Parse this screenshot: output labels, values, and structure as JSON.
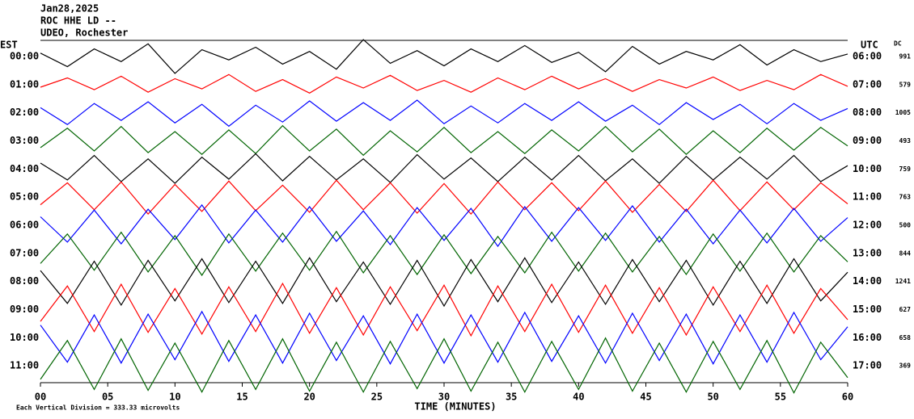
{
  "chart_data": {
    "type": "line",
    "header": [
      "Jan28,2025",
      "ROC HHE LD --",
      "UDEO, Rochester"
    ],
    "left_axis_label": "EST",
    "right_axis_label": "UTC",
    "dc_label": "DC",
    "xlabel": "TIME (MINUTES)",
    "footnote": "Each Vertical Division =  333.33 microvolts",
    "division": 333.33,
    "xlim": [
      0,
      60
    ],
    "xticks": [
      {
        "value": 0,
        "label": "00"
      },
      {
        "value": 5,
        "label": "05"
      },
      10,
      15,
      20,
      25,
      30,
      35,
      40,
      45,
      50,
      55,
      60
    ],
    "rows_est": [
      "00:00",
      "01:00",
      "02:00",
      "03:00",
      "04:00",
      "05:00",
      "06:00",
      "07:00",
      "08:00",
      "09:00",
      "10:00",
      "11:00"
    ],
    "rows_utc": [
      "06:00",
      "07:00",
      "08:00",
      "09:00",
      "10:00",
      "11:00",
      "12:00",
      "13:00",
      "14:00",
      "15:00",
      "16:00",
      "17:00"
    ],
    "dc": [
      "991",
      "579",
      "1005",
      "493",
      "759",
      "763",
      "500",
      "844",
      "1241",
      "627",
      "658",
      "369"
    ],
    "x": [
      0,
      2,
      4,
      6,
      8,
      10,
      12,
      14,
      16,
      18,
      20,
      22,
      24,
      26,
      28,
      30,
      32,
      34,
      36,
      38,
      40,
      42,
      44,
      46,
      48,
      50,
      52,
      54,
      56,
      58,
      60
    ],
    "series": [
      {
        "name": "00:00",
        "color": "#000000",
        "values": [
          40,
          -120,
          90,
          -60,
          150,
          -200,
          80,
          -40,
          110,
          -90,
          60,
          -150,
          200,
          -80,
          70,
          -110,
          90,
          -60,
          130,
          -70,
          50,
          -180,
          120,
          -90,
          60,
          -40,
          140,
          -100,
          80,
          -60,
          30
        ]
      },
      {
        "name": "01:00",
        "color": "#ff0000",
        "values": [
          -30,
          80,
          -60,
          100,
          -90,
          70,
          -50,
          120,
          -80,
          60,
          -100,
          90,
          -40,
          110,
          -70,
          50,
          -90,
          80,
          -60,
          100,
          -50,
          70,
          -80,
          60,
          -40,
          90,
          -70,
          50,
          -60,
          120,
          -20
        ]
      },
      {
        "name": "02:00",
        "color": "#0000ff",
        "values": [
          60,
          -140,
          110,
          -90,
          130,
          -120,
          100,
          -160,
          90,
          -110,
          140,
          -100,
          120,
          -90,
          150,
          -130,
          80,
          -120,
          110,
          -90,
          130,
          -100,
          90,
          -140,
          120,
          -80,
          100,
          -130,
          110,
          -90,
          50
        ]
      },
      {
        "name": "03:00",
        "color": "#006400",
        "values": [
          -80,
          150,
          -120,
          170,
          -140,
          110,
          -160,
          130,
          -150,
          180,
          -120,
          140,
          -170,
          120,
          -130,
          160,
          -140,
          110,
          -150,
          130,
          -120,
          170,
          -130,
          140,
          -160,
          120,
          -140,
          150,
          -110,
          160,
          -60
        ]
      },
      {
        "name": "04:00",
        "color": "#000000",
        "values": [
          70,
          -130,
          160,
          -150,
          120,
          -170,
          140,
          -120,
          180,
          -140,
          150,
          -130,
          120,
          -160,
          170,
          -120,
          130,
          -150,
          140,
          -130,
          160,
          -140,
          120,
          -170,
          150,
          -130,
          140,
          -120,
          160,
          -150,
          40
        ]
      },
      {
        "name": "05:00",
        "color": "#ff0000",
        "values": [
          -90,
          170,
          -150,
          180,
          -200,
          150,
          -170,
          190,
          -160,
          140,
          -180,
          200,
          -150,
          170,
          -190,
          160,
          -200,
          180,
          -150,
          170,
          -160,
          190,
          -180,
          150,
          -170,
          200,
          -160,
          180,
          -150,
          170,
          -80
        ]
      },
      {
        "name": "06:00",
        "color": "#0000ff",
        "values": [
          100,
          -200,
          180,
          -220,
          190,
          -170,
          240,
          -210,
          180,
          -200,
          220,
          -190,
          170,
          -230,
          210,
          -180,
          200,
          -250,
          220,
          -190,
          210,
          -180,
          230,
          -200,
          190,
          -220,
          180,
          -210,
          200,
          -190,
          90
        ]
      },
      {
        "name": "07:00",
        "color": "#006400",
        "values": [
          -120,
          230,
          -200,
          250,
          -220,
          210,
          -260,
          230,
          -210,
          240,
          -200,
          260,
          -230,
          210,
          -250,
          220,
          -240,
          200,
          -230,
          250,
          -210,
          240,
          -220,
          200,
          -250,
          230,
          -210,
          240,
          -220,
          210,
          -100
        ]
      },
      {
        "name": "08:00",
        "color": "#000000",
        "values": [
          130,
          -260,
          240,
          -280,
          250,
          -230,
          270,
          -250,
          240,
          -260,
          280,
          -240,
          230,
          -270,
          250,
          -290,
          260,
          -240,
          280,
          -250,
          230,
          -270,
          260,
          -240,
          250,
          -280,
          240,
          -260,
          270,
          -230,
          110
        ]
      },
      {
        "name": "09:00",
        "color": "#ff0000",
        "values": [
          -140,
          280,
          -260,
          300,
          -270,
          250,
          -290,
          270,
          -260,
          310,
          -280,
          260,
          -300,
          270,
          -250,
          290,
          -310,
          280,
          -260,
          300,
          -270,
          290,
          -280,
          260,
          -300,
          270,
          -260,
          290,
          -280,
          250,
          -120
        ]
      },
      {
        "name": "10:00",
        "color": "#0000ff",
        "values": [
          150,
          -290,
          270,
          -300,
          280,
          -260,
          310,
          -280,
          270,
          -300,
          290,
          -270,
          260,
          -310,
          280,
          -300,
          270,
          -290,
          300,
          -280,
          260,
          -300,
          290,
          -270,
          280,
          -310,
          270,
          -290,
          300,
          -260,
          130
        ]
      },
      {
        "name": "11:00",
        "color": "#006400",
        "values": [
          -160,
          300,
          -280,
          320,
          -290,
          270,
          -310,
          300,
          -280,
          320,
          -300,
          280,
          -310,
          290,
          -270,
          320,
          -300,
          280,
          -310,
          290,
          -280,
          330,
          -300,
          270,
          -310,
          290,
          -280,
          300,
          -320,
          280,
          -140
        ]
      }
    ]
  }
}
